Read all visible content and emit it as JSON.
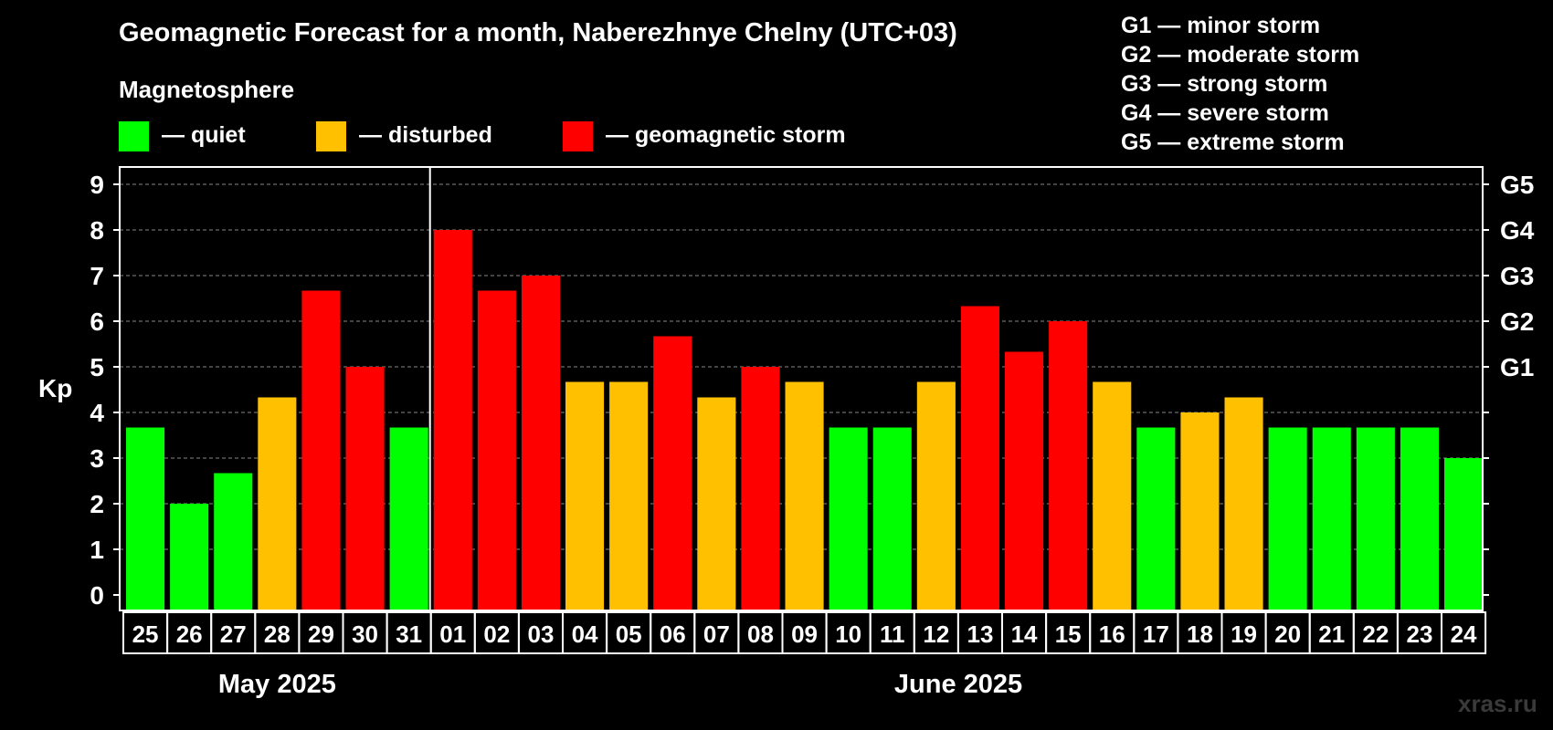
{
  "title": "Geomagnetic Forecast for a month, Naberezhnye Chelny (UTC+03)",
  "subtitle": "Magnetosphere",
  "legend": [
    {
      "label": "— quiet",
      "color": "#00ff00"
    },
    {
      "label": "— disturbed",
      "color": "#ffc000"
    },
    {
      "label": "— geomagnetic storm",
      "color": "#ff0000"
    }
  ],
  "g_scale": [
    "G1 — minor storm",
    "G2 — moderate storm",
    "G3 — strong storm",
    "G4 — severe storm",
    "G5 — extreme storm"
  ],
  "months": {
    "may": "May 2025",
    "june": "June 2025"
  },
  "watermark": "xras.ru",
  "colors": {
    "quiet": "#00ff00",
    "disturbed": "#ffc000",
    "storm": "#ff0000",
    "axis": "#ffffff",
    "grid": "#888888"
  },
  "chart_data": {
    "type": "bar",
    "title": "Geomagnetic Forecast for a month, Naberezhnye Chelny (UTC+03)",
    "xlabel": "",
    "ylabel": "Kp",
    "ylim": [
      0,
      9
    ],
    "yticks": [
      0,
      1,
      2,
      3,
      4,
      5,
      6,
      7,
      8,
      9
    ],
    "right_axis_labels": [
      {
        "kp": 5,
        "label": "G1"
      },
      {
        "kp": 6,
        "label": "G2"
      },
      {
        "kp": 7,
        "label": "G3"
      },
      {
        "kp": 8,
        "label": "G4"
      },
      {
        "kp": 9,
        "label": "G5"
      }
    ],
    "grid": true,
    "categories": [
      "25",
      "26",
      "27",
      "28",
      "29",
      "30",
      "31",
      "01",
      "02",
      "03",
      "04",
      "05",
      "06",
      "07",
      "08",
      "09",
      "10",
      "11",
      "12",
      "13",
      "14",
      "15",
      "16",
      "17",
      "18",
      "19",
      "20",
      "21",
      "22",
      "23",
      "24"
    ],
    "values": [
      3.67,
      2.0,
      2.67,
      4.33,
      6.67,
      5.0,
      3.67,
      8.0,
      6.67,
      7.0,
      4.67,
      4.67,
      5.67,
      4.33,
      5.0,
      4.67,
      3.67,
      3.67,
      4.67,
      6.33,
      5.33,
      6.0,
      4.67,
      3.67,
      4.0,
      4.33,
      3.67,
      3.67,
      3.67,
      3.67,
      3.0
    ],
    "levels": [
      "quiet",
      "quiet",
      "quiet",
      "disturbed",
      "storm",
      "storm",
      "quiet",
      "storm",
      "storm",
      "storm",
      "disturbed",
      "disturbed",
      "storm",
      "disturbed",
      "storm",
      "disturbed",
      "quiet",
      "quiet",
      "disturbed",
      "storm",
      "storm",
      "storm",
      "disturbed",
      "quiet",
      "disturbed",
      "disturbed",
      "quiet",
      "quiet",
      "quiet",
      "quiet",
      "quiet"
    ],
    "month_split_after": "31"
  }
}
